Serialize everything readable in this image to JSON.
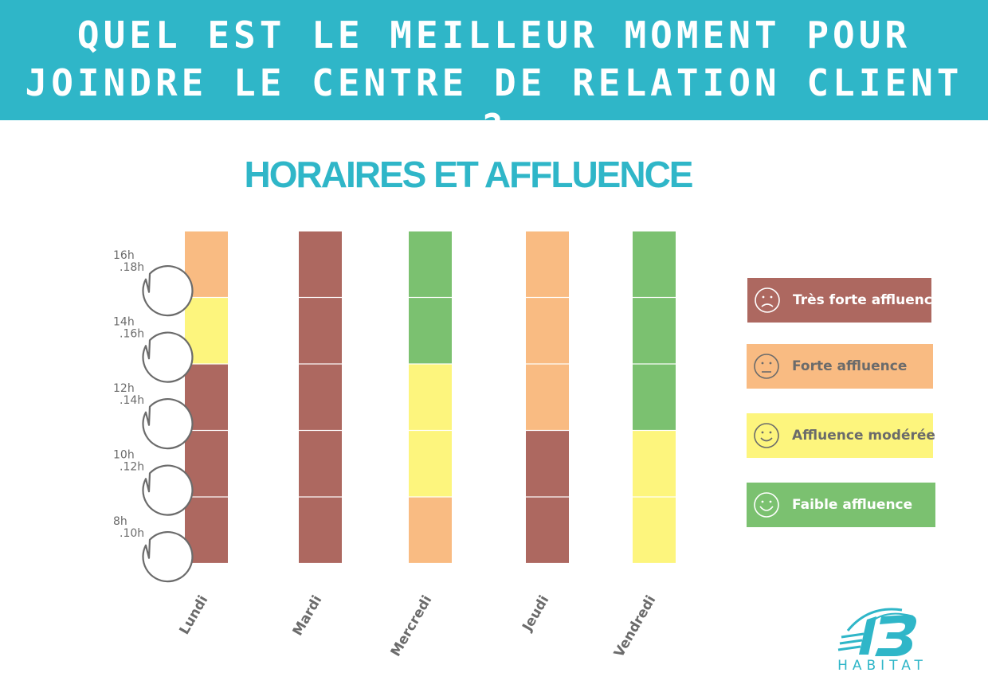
{
  "header": {
    "line1": "QUEL EST LE MEILLEUR MOMENT POUR",
    "line2": "JOINDRE LE CENTRE DE RELATION CLIENT ?"
  },
  "colors": {
    "banner": "#2fb6c8",
    "tres_forte": "#ad6860",
    "forte": "#f9bb82",
    "moderee": "#fdf57d",
    "faible": "#7bc170"
  },
  "chart_data": {
    "type": "heatmap",
    "title": "HORAIRES ET AFFLUENCE",
    "categories": [
      "Lundi",
      "Mardi",
      "Mercredi",
      "Jeudi",
      "Vendredi"
    ],
    "time_slots": [
      {
        "start": "8h",
        "end": ".10h"
      },
      {
        "start": "10h",
        "end": ".12h"
      },
      {
        "start": "12h",
        "end": ".14h"
      },
      {
        "start": "14h",
        "end": ".16h"
      },
      {
        "start": "16h",
        "end": ".18h"
      }
    ],
    "levels": [
      {
        "key": "tres_forte",
        "label": "Très forte affluence",
        "color": "#ad6860",
        "face": "sad-face-icon"
      },
      {
        "key": "forte",
        "label": "Forte affluence",
        "color": "#f9bb82",
        "face": "neutral-face-icon"
      },
      {
        "key": "moderee",
        "label": "Affluence modérée",
        "color": "#fdf57d",
        "face": "smile-face-icon"
      },
      {
        "key": "faible",
        "label": "Faible affluence",
        "color": "#7bc170",
        "face": "happy-face-icon"
      }
    ],
    "values": {
      "Lundi": [
        "tres_forte",
        "tres_forte",
        "tres_forte",
        "moderee",
        "forte"
      ],
      "Mardi": [
        "tres_forte",
        "tres_forte",
        "tres_forte",
        "tres_forte",
        "tres_forte"
      ],
      "Mercredi": [
        "forte",
        "moderee",
        "moderee",
        "faible",
        "faible"
      ],
      "Jeudi": [
        "tres_forte",
        "tres_forte",
        "forte",
        "forte",
        "forte"
      ],
      "Vendredi": [
        "moderee",
        "moderee",
        "faible",
        "faible",
        "faible"
      ]
    },
    "legend_position": "right"
  },
  "logo": {
    "mark": "13",
    "text": "HABITAT"
  }
}
